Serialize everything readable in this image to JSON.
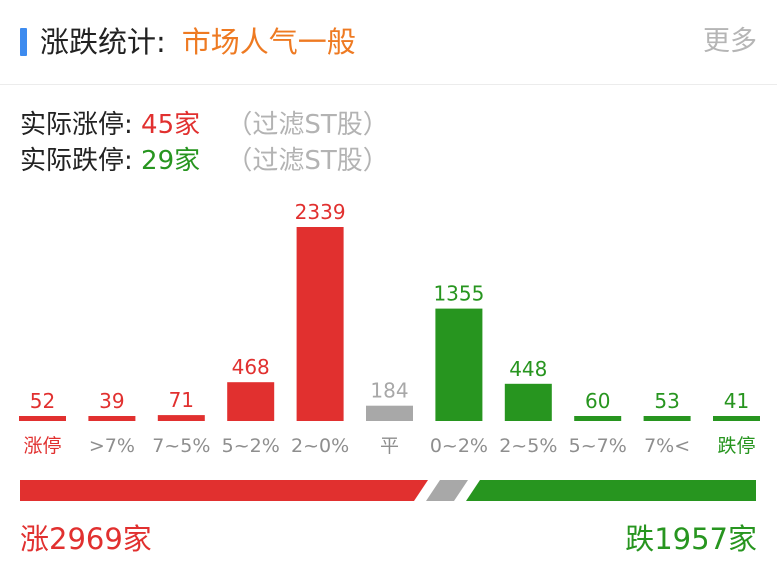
{
  "header": {
    "title": "涨跌统计:",
    "status": "市场人气一般",
    "more": "更多"
  },
  "stats": {
    "limit_up_label": "实际涨停:",
    "limit_up_value": "45家",
    "limit_down_label": "实际跌停:",
    "limit_down_value": "29家",
    "filter_note_up": "（过滤ST股）",
    "filter_note_down": "（过滤ST股）"
  },
  "chart_data": {
    "type": "bar",
    "categories": [
      "涨停",
      ">7%",
      "7~5%",
      "5~2%",
      "2~0%",
      "平",
      "0~2%",
      "2~5%",
      "5~7%",
      "7%<",
      "跌停"
    ],
    "values": [
      52,
      39,
      71,
      468,
      2339,
      184,
      1355,
      448,
      60,
      53,
      41
    ],
    "ylim": [
      0,
      2339
    ],
    "colors": {
      "up": "#e1302f",
      "flat": "#a8a8a8",
      "down": "#27951f",
      "label_default": "#8e8e8e"
    }
  },
  "footer": {
    "up_text": "涨2969家",
    "down_text": "跌1957家"
  }
}
